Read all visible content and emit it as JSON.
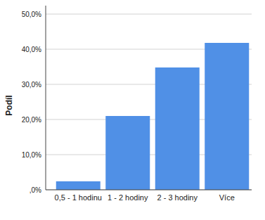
{
  "chart_data": {
    "type": "bar",
    "y_label": "Podíl",
    "categories": [
      "0,5 - 1 hodinu",
      "1 - 2 hodiny",
      "2 - 3 hodiny",
      "Více"
    ],
    "values": [
      2.4,
      21,
      34.8,
      41.8
    ],
    "color": "#5090e6",
    "ylim": [
      0,
      50
    ],
    "yticks": [
      {
        "value": 0,
        "label": ",0%"
      },
      {
        "value": 10,
        "label": "10,0%"
      },
      {
        "value": 20,
        "label": "20,0%"
      },
      {
        "value": 30,
        "label": "30,0%"
      },
      {
        "value": 40,
        "label": "40,0%"
      },
      {
        "value": 50,
        "label": "50,0%"
      }
    ],
    "grid": true
  }
}
